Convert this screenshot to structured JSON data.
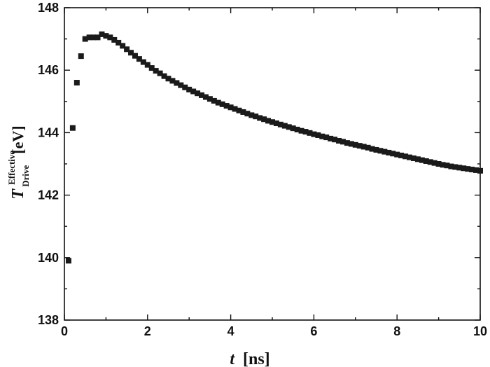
{
  "chart_data": {
    "type": "scatter",
    "xlabel": {
      "var": "t",
      "unit": "[ns]"
    },
    "ylabel": {
      "var": "T",
      "sup": "Effective",
      "sub": "Drive",
      "unit": "[eV]"
    },
    "xlim": [
      0,
      10
    ],
    "ylim": [
      138,
      148
    ],
    "xticks": [
      "0",
      "2",
      "4",
      "6",
      "8",
      "10"
    ],
    "yticks": [
      "138",
      "140",
      "142",
      "144",
      "146",
      "148"
    ],
    "grid": false,
    "marker": "square",
    "marker_color": "#1a1a1a",
    "series": [
      {
        "x": [
          0.1,
          0.2,
          0.3,
          0.4,
          0.5,
          0.6,
          0.7,
          0.8,
          0.9,
          1.0,
          1.1,
          1.2,
          1.3,
          1.4,
          1.5,
          1.6,
          1.7,
          1.8,
          1.9,
          2.0,
          2.1,
          2.2,
          2.3,
          2.4,
          2.5,
          2.6,
          2.7,
          2.8,
          2.9,
          3.0,
          3.1,
          3.2,
          3.3,
          3.4,
          3.5,
          3.6,
          3.7,
          3.8,
          3.9,
          4.0,
          4.1,
          4.2,
          4.3,
          4.4,
          4.5,
          4.6,
          4.7,
          4.8,
          4.9,
          5.0,
          5.1,
          5.2,
          5.3,
          5.4,
          5.5,
          5.6,
          5.7,
          5.8,
          5.9,
          6.0,
          6.1,
          6.2,
          6.3,
          6.4,
          6.5,
          6.6,
          6.7,
          6.8,
          6.9,
          7.0,
          7.1,
          7.2,
          7.3,
          7.4,
          7.5,
          7.6,
          7.7,
          7.8,
          7.9,
          8.0,
          8.1,
          8.2,
          8.3,
          8.4,
          8.5,
          8.6,
          8.7,
          8.8,
          8.9,
          9.0,
          9.1,
          9.2,
          9.3,
          9.4,
          9.5,
          9.6,
          9.7,
          9.8,
          9.9,
          10.0
        ],
        "y": [
          139.9,
          144.15,
          145.6,
          146.45,
          147.0,
          147.05,
          147.05,
          147.05,
          147.15,
          147.1,
          147.05,
          146.97,
          146.88,
          146.78,
          146.67,
          146.56,
          146.46,
          146.36,
          146.26,
          146.17,
          146.07,
          145.98,
          145.9,
          145.81,
          145.73,
          145.66,
          145.59,
          145.52,
          145.45,
          145.38,
          145.32,
          145.26,
          145.2,
          145.14,
          145.08,
          145.02,
          144.96,
          144.91,
          144.86,
          144.81,
          144.76,
          144.71,
          144.66,
          144.61,
          144.56,
          144.52,
          144.47,
          144.43,
          144.38,
          144.34,
          144.3,
          144.26,
          144.22,
          144.18,
          144.14,
          144.1,
          144.06,
          144.03,
          143.99,
          143.95,
          143.92,
          143.88,
          143.85,
          143.81,
          143.78,
          143.74,
          143.71,
          143.67,
          143.64,
          143.61,
          143.58,
          143.55,
          143.52,
          143.48,
          143.45,
          143.42,
          143.39,
          143.36,
          143.33,
          143.3,
          143.27,
          143.24,
          143.21,
          143.18,
          143.15,
          143.12,
          143.09,
          143.06,
          143.03,
          143.0,
          142.97,
          142.95,
          142.92,
          142.9,
          142.88,
          142.86,
          142.84,
          142.82,
          142.8,
          142.78
        ]
      }
    ]
  }
}
